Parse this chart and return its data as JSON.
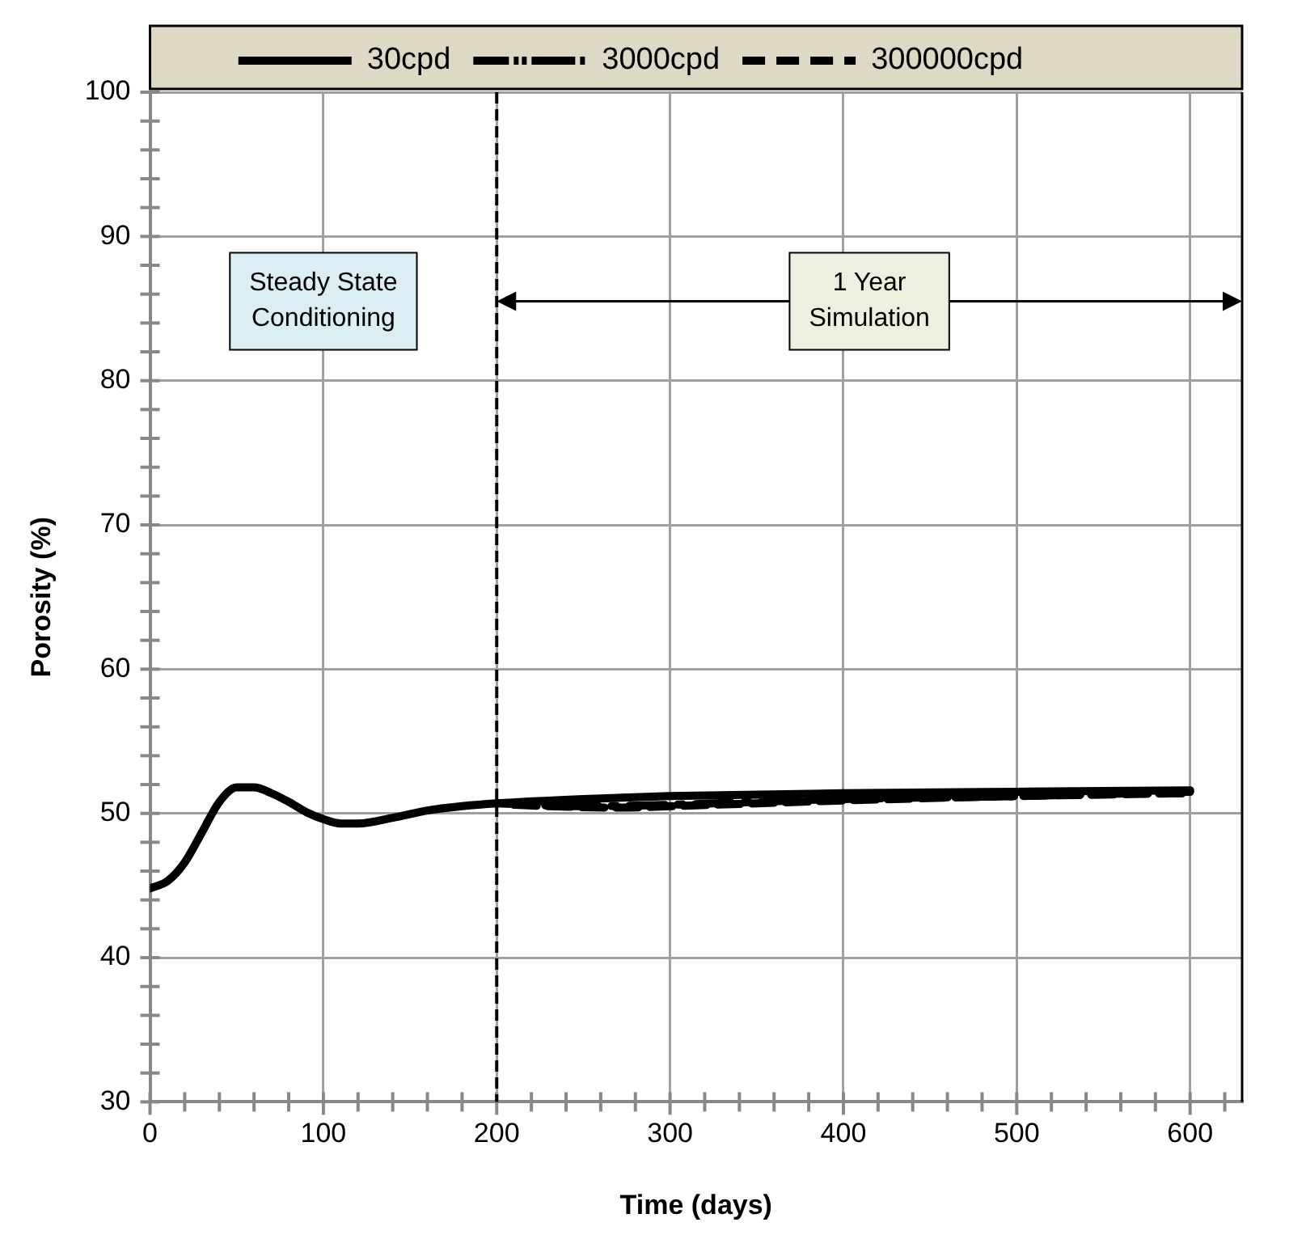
{
  "chart_data": {
    "type": "line",
    "xlabel": "Time (days)",
    "ylabel": "Porosity (%)",
    "xlim": [
      0,
      630
    ],
    "xticks": [
      0,
      {
        "value": 20,
        "label": null
      },
      {
        "value": 40,
        "label": null
      },
      {
        "value": 60,
        "label": null
      },
      {
        "value": 80,
        "label": null
      },
      100,
      {
        "value": 120,
        "label": null
      },
      {
        "value": 140,
        "label": null
      },
      {
        "value": 160,
        "label": null
      },
      {
        "value": 180,
        "label": null
      },
      200,
      {
        "value": 220,
        "label": null
      },
      {
        "value": 240,
        "label": null
      },
      {
        "value": 260,
        "label": null
      },
      {
        "value": 280,
        "label": null
      },
      300,
      {
        "value": 320,
        "label": null
      },
      {
        "value": 340,
        "label": null
      },
      {
        "value": 360,
        "label": null
      },
      {
        "value": 380,
        "label": null
      },
      400,
      {
        "value": 420,
        "label": null
      },
      {
        "value": 440,
        "label": null
      },
      {
        "value": 460,
        "label": null
      },
      {
        "value": 480,
        "label": null
      },
      500,
      {
        "value": 520,
        "label": null
      },
      {
        "value": 540,
        "label": null
      },
      {
        "value": 560,
        "label": null
      },
      {
        "value": 580,
        "label": null
      },
      600,
      {
        "value": 620,
        "label": null
      }
    ],
    "ylim": [
      30,
      100
    ],
    "yticks": [
      30,
      {
        "value": 32,
        "label": null
      },
      {
        "value": 34,
        "label": null
      },
      {
        "value": 36,
        "label": null
      },
      {
        "value": 38,
        "label": null
      },
      40,
      {
        "value": 42,
        "label": null
      },
      {
        "value": 44,
        "label": null
      },
      {
        "value": 46,
        "label": null
      },
      {
        "value": 48,
        "label": null
      },
      50,
      {
        "value": 52,
        "label": null
      },
      {
        "value": 54,
        "label": null
      },
      {
        "value": 56,
        "label": null
      },
      {
        "value": 58,
        "label": null
      },
      60,
      {
        "value": 62,
        "label": null
      },
      {
        "value": 64,
        "label": null
      },
      {
        "value": 66,
        "label": null
      },
      {
        "value": 68,
        "label": null
      },
      70,
      {
        "value": 72,
        "label": null
      },
      {
        "value": 74,
        "label": null
      },
      {
        "value": 76,
        "label": null
      },
      {
        "value": 78,
        "label": null
      },
      80,
      {
        "value": 82,
        "label": null
      },
      {
        "value": 84,
        "label": null
      },
      {
        "value": 86,
        "label": null
      },
      {
        "value": 88,
        "label": null
      },
      90,
      {
        "value": 92,
        "label": null
      },
      {
        "value": 94,
        "label": null
      },
      {
        "value": 96,
        "label": null
      },
      {
        "value": 98,
        "label": null
      },
      100
    ],
    "grid": true,
    "legend": "top",
    "marker": "none",
    "series": [
      {
        "name": "30cpd",
        "color": "#000000",
        "line_style": "solid",
        "x": [
          0,
          10,
          20,
          30,
          40,
          50,
          60,
          70,
          80,
          90,
          100,
          110,
          120,
          140,
          160,
          180,
          200,
          250,
          300,
          400,
          500,
          600
        ],
        "values": [
          44.8,
          45.3,
          46.6,
          48.7,
          50.8,
          51.8,
          51.8,
          51.4,
          50.8,
          50.1,
          49.6,
          49.3,
          49.3,
          49.7,
          50.2,
          50.5,
          50.7,
          51.0,
          51.2,
          51.4,
          51.5,
          51.6
        ]
      },
      {
        "name": "3000cpd",
        "color": "#000000",
        "line_style": "dashdot",
        "x": [
          200,
          220,
          250,
          300,
          400,
          500,
          600
        ],
        "values": [
          50.7,
          50.6,
          50.5,
          50.6,
          51.0,
          51.2,
          51.5
        ]
      },
      {
        "name": "300000cpd",
        "color": "#000000",
        "line_style": "dashed",
        "x": [
          210,
          230,
          270,
          300,
          400,
          500,
          600
        ],
        "values": [
          50.6,
          50.5,
          50.4,
          50.5,
          50.9,
          51.2,
          51.4
        ]
      }
    ],
    "ref_lines": [
      {
        "axis": "x",
        "value": 200,
        "color": "#000000",
        "line_style": "dashed"
      }
    ],
    "annotations": [
      "Steady State\nConditioning",
      "1 Year\nSimulation"
    ]
  }
}
